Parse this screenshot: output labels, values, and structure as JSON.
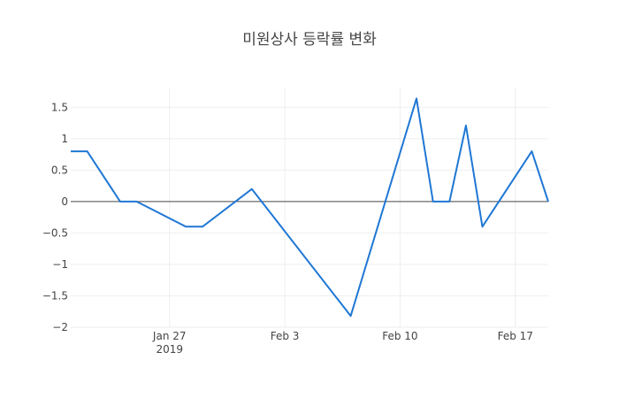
{
  "chart_data": {
    "type": "line",
    "title": "미원상사 등락률 변화",
    "xlabel": "",
    "ylabel": "",
    "ylim": [
      -2,
      1.8
    ],
    "xlim": [
      "2019-01-21",
      "2019-02-19"
    ],
    "x_ticks": [
      {
        "date": "2019-01-27",
        "label": "Jan 27",
        "sublabel": "2019"
      },
      {
        "date": "2019-02-03",
        "label": "Feb 3",
        "sublabel": ""
      },
      {
        "date": "2019-02-10",
        "label": "Feb 10",
        "sublabel": ""
      },
      {
        "date": "2019-02-17",
        "label": "Feb 17",
        "sublabel": ""
      }
    ],
    "y_ticks": [
      {
        "value": 1.5,
        "label": "1.5"
      },
      {
        "value": 1,
        "label": "1"
      },
      {
        "value": 0.5,
        "label": "0.5"
      },
      {
        "value": 0,
        "label": "0"
      },
      {
        "value": -0.5,
        "label": "−0.5"
      },
      {
        "value": -1,
        "label": "−1"
      },
      {
        "value": -1.5,
        "label": "−1.5"
      },
      {
        "value": -2,
        "label": "−2"
      }
    ],
    "grid": true,
    "series": [
      {
        "name": "",
        "color": "#1f77d4",
        "x": [
          "2019-01-21",
          "2019-01-22",
          "2019-01-24",
          "2019-01-25",
          "2019-01-28",
          "2019-01-29",
          "2019-02-01",
          "2019-02-07",
          "2019-02-11",
          "2019-02-12",
          "2019-02-13",
          "2019-02-14",
          "2019-02-15",
          "2019-02-18",
          "2019-02-19"
        ],
        "y": [
          0.8,
          0.8,
          0,
          0,
          -0.4,
          -0.4,
          0.2,
          -1.82,
          1.64,
          0,
          0,
          1.21,
          -0.4,
          0.8,
          0
        ]
      }
    ]
  }
}
